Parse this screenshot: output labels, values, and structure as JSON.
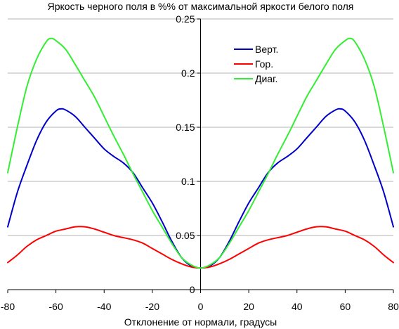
{
  "chart_data": {
    "type": "line",
    "title": "Яркость черного поля в %% от максимальной яркости белого поля",
    "xlabel": "Отклонение от нормали, градусы",
    "ylabel": "",
    "xlim": [
      -80,
      80
    ],
    "ylim": [
      0,
      0.25
    ],
    "x_ticks": [
      -80,
      -60,
      -40,
      -20,
      0,
      20,
      40,
      60,
      80
    ],
    "x_tick_labels": [
      "-80",
      "-60",
      "-40",
      "-20",
      "0",
      "20",
      "40",
      "60",
      "80"
    ],
    "y_ticks": [
      0,
      0.05,
      0.1,
      0.15,
      0.2,
      0.25
    ],
    "y_tick_labels": [
      "0",
      "0.05",
      "0.1",
      "0.15",
      "0.2",
      "0.25"
    ],
    "grid": "horizontal",
    "legend_position": "top-right",
    "series": [
      {
        "name": "Верт.",
        "color": "#0000cc",
        "points": [
          [
            0,
            0.02
          ],
          [
            4,
            0.022
          ],
          [
            8,
            0.03
          ],
          [
            12,
            0.045
          ],
          [
            16,
            0.063
          ],
          [
            20,
            0.08
          ],
          [
            24,
            0.094
          ],
          [
            28,
            0.108
          ],
          [
            32,
            0.117
          ],
          [
            36,
            0.123
          ],
          [
            40,
            0.13
          ],
          [
            44,
            0.14
          ],
          [
            48,
            0.15
          ],
          [
            52,
            0.16
          ],
          [
            56,
            0.166
          ],
          [
            58,
            0.167
          ],
          [
            60,
            0.165
          ],
          [
            64,
            0.155
          ],
          [
            68,
            0.138
          ],
          [
            72,
            0.115
          ],
          [
            76,
            0.09
          ],
          [
            80,
            0.058
          ]
        ]
      },
      {
        "name": "Гор.",
        "color": "#ff0000",
        "points": [
          [
            0,
            0.02
          ],
          [
            4,
            0.021
          ],
          [
            8,
            0.024
          ],
          [
            12,
            0.028
          ],
          [
            16,
            0.033
          ],
          [
            20,
            0.038
          ],
          [
            24,
            0.043
          ],
          [
            28,
            0.046
          ],
          [
            32,
            0.048
          ],
          [
            36,
            0.05
          ],
          [
            40,
            0.053
          ],
          [
            44,
            0.056
          ],
          [
            48,
            0.058
          ],
          [
            52,
            0.058
          ],
          [
            56,
            0.056
          ],
          [
            60,
            0.054
          ],
          [
            64,
            0.05
          ],
          [
            68,
            0.046
          ],
          [
            72,
            0.04
          ],
          [
            76,
            0.032
          ],
          [
            80,
            0.025
          ]
        ]
      },
      {
        "name": "Диаг.",
        "color": "#33ee33",
        "points": [
          [
            0,
            0.02
          ],
          [
            4,
            0.023
          ],
          [
            8,
            0.03
          ],
          [
            12,
            0.043
          ],
          [
            16,
            0.058
          ],
          [
            20,
            0.073
          ],
          [
            24,
            0.09
          ],
          [
            28,
            0.107
          ],
          [
            32,
            0.125
          ],
          [
            36,
            0.142
          ],
          [
            40,
            0.16
          ],
          [
            44,
            0.178
          ],
          [
            48,
            0.193
          ],
          [
            52,
            0.208
          ],
          [
            56,
            0.222
          ],
          [
            60,
            0.23
          ],
          [
            62,
            0.232
          ],
          [
            64,
            0.229
          ],
          [
            68,
            0.213
          ],
          [
            72,
            0.188
          ],
          [
            76,
            0.15
          ],
          [
            80,
            0.108
          ]
        ]
      }
    ]
  }
}
